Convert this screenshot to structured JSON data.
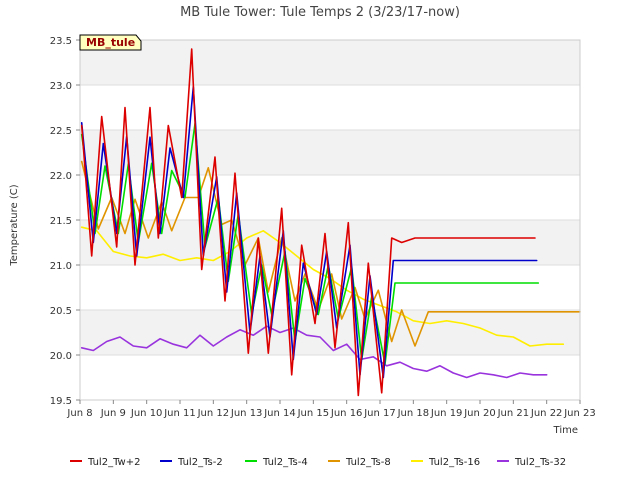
{
  "chart_data": {
    "type": "line",
    "title": "MB Tule Tower: Tule Temps 2 (3/23/17-now)",
    "xlabel": "Time",
    "ylabel": "Temperature (C)",
    "site_label": "MB_tule",
    "xlim": [
      8,
      23
    ],
    "ylim": [
      19.5,
      23.5
    ],
    "x_ticks": [
      8,
      9,
      10,
      11,
      12,
      13,
      14,
      15,
      16,
      17,
      18,
      19,
      20,
      21,
      22,
      23
    ],
    "x_tick_labels": [
      "Jun 8",
      "Jun 9",
      "Jun 10",
      "Jun 11",
      "Jun 12",
      "Jun 13",
      "Jun 14",
      "Jun 15",
      "Jun 16",
      "Jun 17",
      "Jun 18",
      "Jun 19",
      "Jun 20",
      "Jun 21",
      "Jun 22",
      "Jun 23"
    ],
    "y_ticks": [
      19.5,
      20.0,
      20.5,
      21.0,
      21.5,
      22.0,
      22.5,
      23.0,
      23.5
    ],
    "y_tick_labels": [
      "19.5",
      "20.0",
      "20.5",
      "21.0",
      "21.5",
      "22.0",
      "22.5",
      "23.0",
      "23.5"
    ],
    "grid": true,
    "legend_position": "bottom",
    "series": [
      {
        "name": "Tul2_Tw+2",
        "color": "#dd0000",
        "x": [
          8.05,
          8.35,
          8.65,
          9.1,
          9.35,
          9.65,
          10.1,
          10.35,
          10.65,
          11.05,
          11.35,
          11.65,
          12.05,
          12.35,
          12.65,
          13.05,
          13.35,
          13.65,
          14.05,
          14.35,
          14.65,
          15.05,
          15.35,
          15.65,
          16.05,
          16.35,
          16.65,
          17.05,
          17.35,
          17.65,
          18.05,
          18.35,
          18.65,
          19.05,
          19.35,
          19.65,
          20.05,
          20.35,
          20.65,
          21.05,
          21.35,
          21.65
        ],
        "y": [
          22.55,
          21.1,
          22.65,
          21.2,
          22.75,
          21.0,
          22.75,
          21.3,
          22.55,
          21.75,
          23.4,
          20.95,
          22.2,
          20.6,
          22.02,
          20.02,
          21.3,
          20.02,
          21.63,
          19.78,
          21.22,
          20.35,
          21.35,
          20.08,
          21.47,
          19.55,
          21.02,
          19.58,
          21.3,
          21.25,
          21.3,
          21.3,
          21.3,
          21.3,
          21.3,
          21.3,
          21.3,
          21.3,
          21.3,
          21.3,
          21.3,
          21.3
        ]
      },
      {
        "name": "Tul2_Ts-2",
        "color": "#0000cc",
        "x": [
          8.05,
          8.4,
          8.7,
          9.1,
          9.4,
          9.7,
          10.1,
          10.4,
          10.7,
          11.1,
          11.4,
          11.7,
          12.1,
          12.4,
          12.7,
          13.1,
          13.4,
          13.7,
          14.1,
          14.4,
          14.7,
          15.1,
          15.4,
          15.7,
          16.1,
          16.4,
          16.7,
          17.1,
          17.4,
          17.7,
          18.1,
          18.4,
          18.7,
          19.1,
          19.4,
          19.7,
          20.1,
          20.4,
          20.7,
          21.1,
          21.4,
          21.7
        ],
        "y": [
          22.58,
          21.25,
          22.35,
          21.35,
          22.43,
          21.1,
          22.42,
          21.35,
          22.3,
          21.75,
          22.98,
          21.1,
          21.98,
          20.7,
          21.8,
          20.25,
          21.1,
          20.2,
          21.38,
          19.95,
          21.02,
          20.45,
          21.15,
          20.3,
          21.22,
          19.78,
          20.88,
          19.75,
          21.05,
          21.05,
          21.05,
          21.05,
          21.05,
          21.05,
          21.05,
          21.05,
          21.05,
          21.05,
          21.05,
          21.05,
          21.05,
          21.05
        ]
      },
      {
        "name": "Tul2_Ts-4",
        "color": "#00dd00",
        "x": [
          8.05,
          8.45,
          8.75,
          9.15,
          9.45,
          9.75,
          10.15,
          10.45,
          10.75,
          11.15,
          11.45,
          11.75,
          12.15,
          12.45,
          12.75,
          13.15,
          13.45,
          13.75,
          14.15,
          14.45,
          14.75,
          15.15,
          15.45,
          15.75,
          16.15,
          16.45,
          16.75,
          17.15,
          17.45,
          17.75,
          18.15,
          18.45,
          18.75,
          19.15,
          19.45,
          19.75,
          20.15,
          20.45,
          20.75,
          21.15,
          21.45,
          21.75
        ],
        "y": [
          22.45,
          21.35,
          22.1,
          21.35,
          22.12,
          21.25,
          22.13,
          21.35,
          22.05,
          21.75,
          22.57,
          21.2,
          21.75,
          20.82,
          21.57,
          20.45,
          21.0,
          20.45,
          21.15,
          20.15,
          20.85,
          20.45,
          21.0,
          20.4,
          20.98,
          19.95,
          20.65,
          19.9,
          20.8,
          20.8,
          20.8,
          20.8,
          20.8,
          20.8,
          20.8,
          20.8,
          20.8,
          20.8,
          20.8,
          20.8,
          20.8,
          20.8
        ]
      },
      {
        "name": "Tul2_Ts-8",
        "color": "#e09400",
        "x": [
          8.05,
          8.55,
          8.95,
          9.35,
          9.65,
          10.05,
          10.45,
          10.75,
          11.15,
          11.55,
          11.85,
          12.25,
          12.55,
          12.95,
          13.35,
          13.65,
          14.05,
          14.45,
          14.75,
          15.15,
          15.55,
          15.85,
          16.25,
          16.55,
          16.95,
          17.35,
          17.65,
          18.05,
          18.45,
          18.75,
          19.15,
          19.55,
          19.85,
          20.25,
          20.55,
          20.95,
          21.35,
          21.65,
          22.05,
          22.45,
          22.75,
          23.0
        ],
        "y": [
          22.15,
          21.4,
          21.75,
          21.35,
          21.73,
          21.3,
          21.7,
          21.38,
          21.75,
          21.75,
          22.08,
          21.45,
          21.5,
          21.0,
          21.3,
          20.7,
          21.3,
          20.6,
          20.9,
          20.5,
          20.9,
          20.4,
          20.75,
          20.4,
          20.72,
          20.15,
          20.5,
          20.1,
          20.48,
          20.48,
          20.48,
          20.48,
          20.48,
          20.48,
          20.48,
          20.48,
          20.48,
          20.48,
          20.48,
          20.48,
          20.48,
          20.48
        ]
      },
      {
        "name": "Tul2_Ts-16",
        "color": "#ffee00",
        "x": [
          8.05,
          8.5,
          9.0,
          9.5,
          10.0,
          10.5,
          11.0,
          11.5,
          12.0,
          12.5,
          13.0,
          13.5,
          14.0,
          14.5,
          15.0,
          15.5,
          16.0,
          16.5,
          17.0,
          17.5,
          18.0,
          18.5,
          19.0,
          19.5,
          20.0,
          20.5,
          21.0,
          21.5,
          22.0,
          22.5
        ],
        "y": [
          21.42,
          21.38,
          21.15,
          21.1,
          21.08,
          21.12,
          21.05,
          21.08,
          21.05,
          21.15,
          21.3,
          21.38,
          21.25,
          21.1,
          20.95,
          20.85,
          20.72,
          20.62,
          20.55,
          20.48,
          20.38,
          20.35,
          20.38,
          20.35,
          20.3,
          20.22,
          20.2,
          20.1,
          20.12,
          20.12
        ]
      },
      {
        "name": "Tul2_Ts-32",
        "color": "#9933dd",
        "x": [
          8.05,
          8.4,
          8.8,
          9.2,
          9.6,
          10.0,
          10.4,
          10.8,
          11.2,
          11.6,
          12.0,
          12.4,
          12.8,
          13.2,
          13.6,
          14.0,
          14.4,
          14.8,
          15.2,
          15.6,
          16.0,
          16.4,
          16.8,
          17.2,
          17.6,
          18.0,
          18.4,
          18.8,
          19.2,
          19.6,
          20.0,
          20.4,
          20.8,
          21.2,
          21.6,
          22.0
        ],
        "y": [
          20.08,
          20.05,
          20.15,
          20.2,
          20.1,
          20.08,
          20.18,
          20.12,
          20.08,
          20.22,
          20.1,
          20.2,
          20.28,
          20.22,
          20.32,
          20.25,
          20.3,
          20.22,
          20.2,
          20.05,
          20.12,
          19.95,
          19.98,
          19.88,
          19.92,
          19.85,
          19.82,
          19.88,
          19.8,
          19.75,
          19.8,
          19.78,
          19.75,
          19.8,
          19.78,
          19.78
        ]
      }
    ]
  }
}
